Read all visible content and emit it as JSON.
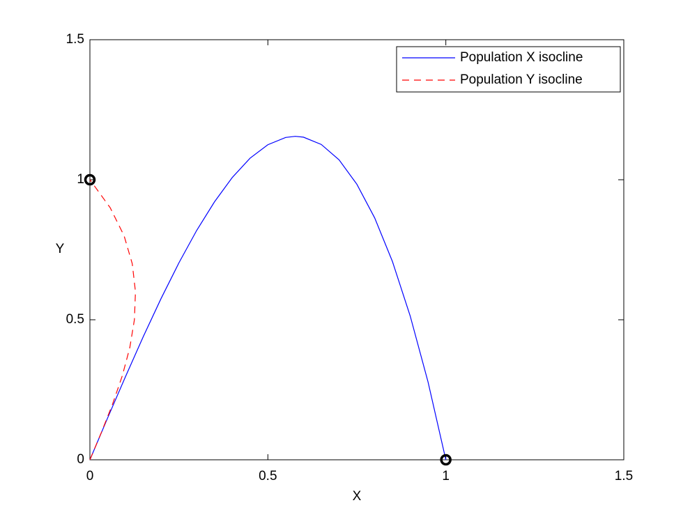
{
  "chart_data": {
    "type": "line",
    "x_label": "X",
    "y_label": "Y",
    "xlim": [
      0,
      1.5
    ],
    "ylim": [
      0,
      1.5
    ],
    "xticks": [
      0,
      0.5,
      1,
      1.5
    ],
    "yticks": [
      0,
      0.5,
      1,
      1.5
    ],
    "grid": false,
    "legend": "top-right",
    "series": [
      {
        "name": "Population X isocline",
        "color": "#0000ff",
        "dash": "solid",
        "x": [
          0,
          0.05,
          0.1,
          0.15,
          0.2,
          0.25,
          0.3,
          0.35,
          0.4,
          0.45,
          0.5,
          0.55,
          0.577,
          0.6,
          0.65,
          0.7,
          0.75,
          0.8,
          0.85,
          0.9,
          0.95,
          1
        ],
        "values": [
          0,
          0.15,
          0.297,
          0.44,
          0.576,
          0.703,
          0.819,
          0.921,
          1.008,
          1.077,
          1.125,
          1.151,
          1.155,
          1.152,
          1.126,
          1.071,
          0.984,
          0.864,
          0.708,
          0.513,
          0.278,
          0
        ]
      },
      {
        "name": "Population Y isocline",
        "color": "#ff0000",
        "dash": "dashed",
        "x": [
          0,
          0.033,
          0.064,
          0.091,
          0.112,
          0.125,
          0.128,
          0.119,
          0.096,
          0.057,
          0
        ],
        "values": [
          0,
          0.1,
          0.2,
          0.3,
          0.4,
          0.5,
          0.6,
          0.7,
          0.8,
          0.9,
          1
        ]
      }
    ],
    "points": {
      "color": "#000000",
      "x": [
        0,
        1
      ],
      "values": [
        1,
        0
      ]
    }
  }
}
